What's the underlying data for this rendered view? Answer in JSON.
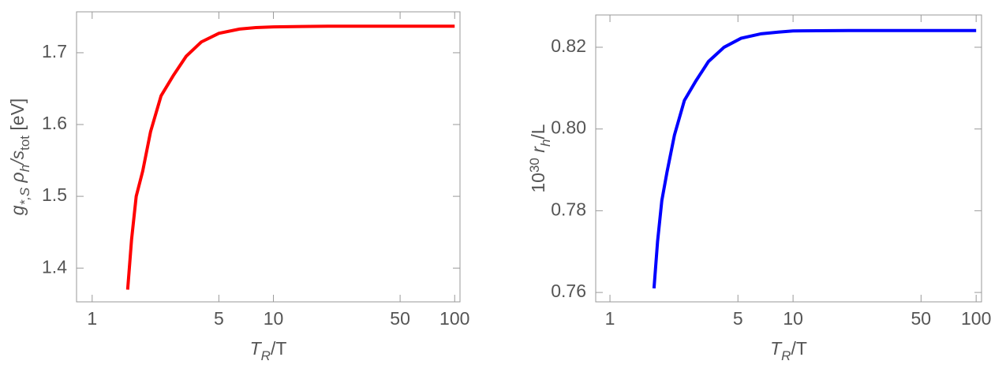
{
  "chart_data": [
    {
      "type": "line",
      "xlog": true,
      "xlabel": [
        "T",
        "R",
        "/T"
      ],
      "ylabel": [
        "g",
        "*,S",
        " ρ",
        "h",
        "/s",
        "tot",
        " [eV]"
      ],
      "xlim": [
        0.82,
        107
      ],
      "xticks": [
        1,
        5,
        10,
        50,
        100
      ],
      "ylim": [
        1.353,
        1.757
      ],
      "yticks": [
        1.4,
        1.5,
        1.6,
        1.7
      ],
      "series": [
        {
          "color": "#ff0000",
          "x": [
            1.57,
            1.65,
            1.75,
            1.9,
            2.1,
            2.4,
            2.8,
            3.3,
            4,
            5,
            6.5,
            8,
            10,
            20,
            50,
            100
          ],
          "values": [
            1.37,
            1.44,
            1.5,
            1.535,
            1.59,
            1.64,
            1.668,
            1.695,
            1.715,
            1.727,
            1.733,
            1.735,
            1.736,
            1.737,
            1.737,
            1.737
          ]
        }
      ]
    },
    {
      "type": "line",
      "xlog": true,
      "xlabel": [
        "T",
        "R",
        "/T"
      ],
      "ylabel": [
        "10",
        "30",
        " r",
        "h",
        "/L"
      ],
      "xlim": [
        0.836,
        107
      ],
      "xticks": [
        1,
        5,
        10,
        50,
        100
      ],
      "ylim": [
        0.7577,
        0.8279
      ],
      "yticks": [
        0.76,
        0.78,
        {
          "value": 0.8,
          "label": "0.80"
        },
        0.82
      ],
      "series": [
        {
          "color": "#0000ff",
          "x": [
            1.74,
            1.82,
            1.92,
            2.05,
            2.25,
            2.55,
            2.95,
            3.45,
            4.2,
            5.2,
            6.7,
            8.3,
            10,
            20,
            50,
            100
          ],
          "values": [
            0.761,
            0.7725,
            0.7825,
            0.7895,
            0.7985,
            0.807,
            0.8118,
            0.8165,
            0.82,
            0.8222,
            0.8233,
            0.8237,
            0.824,
            0.8241,
            0.8241,
            0.8241
          ]
        }
      ]
    }
  ]
}
